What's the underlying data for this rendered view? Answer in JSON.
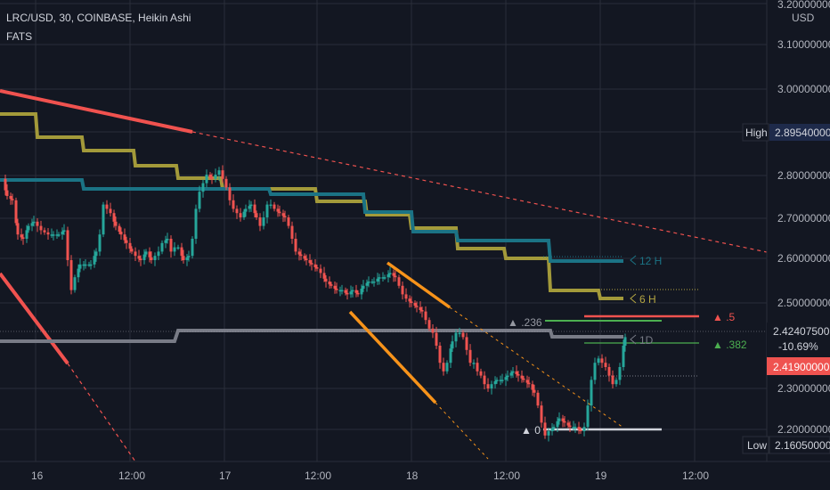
{
  "header": {
    "symbol_line": "LRC/USD, 30, COINBASE, Heikin Ashi",
    "indicator": "FATS"
  },
  "price_axis": {
    "currency": "USD",
    "labels": [
      "3.20000000",
      "3.10000000",
      "3.00000000",
      "2.80000000",
      "2.70000000",
      "2.60000000",
      "2.50000000",
      "2.30000000",
      "2.20000000"
    ],
    "high_label": "High",
    "high_value": "2.89540000",
    "low_label": "Low",
    "low_value": "2.16050000",
    "last_price": "2.42407500",
    "last_change": "-10.69%",
    "ref_price": "2.41900000"
  },
  "time_axis": {
    "labels": [
      "16",
      "12:00",
      "17",
      "12:00",
      "18",
      "12:00",
      "19",
      "12:00"
    ]
  },
  "annotations": {
    "h12": "12 H",
    "h6": "6 H",
    "d1": "1D",
    "fib_236": "▲ .236",
    "fib_5": "▲ .5",
    "fib_382": "▲ .382",
    "fib_0": "▲ 0"
  },
  "colors": {
    "background": "#131722",
    "up": "#26a69a",
    "down": "#ef5350",
    "olive": "#b5a642",
    "teal": "#1e7c8c",
    "gray": "#7b7f8a",
    "orange": "#f7931a",
    "high_badge": "#1e2a4a",
    "ref_badge": "#ef5350",
    "last_badge": "#26a69a"
  },
  "chart_data": {
    "type": "candlestick",
    "symbol": "LRC/USD",
    "interval": "30",
    "exchange": "COINBASE",
    "style": "Heikin Ashi",
    "ylim": [
      2.14,
      3.22
    ],
    "session_high": 2.8954,
    "session_low": 2.1605,
    "last": 2.424075,
    "change_pct": -10.69,
    "price_path": [
      [
        0,
        2.79
      ],
      [
        6,
        2.75
      ],
      [
        12,
        2.74
      ],
      [
        18,
        2.66
      ],
      [
        24,
        2.65
      ],
      [
        30,
        2.68
      ],
      [
        36,
        2.69
      ],
      [
        44,
        2.67
      ],
      [
        52,
        2.66
      ],
      [
        58,
        2.66
      ],
      [
        64,
        2.66
      ],
      [
        70,
        2.67
      ],
      [
        74,
        2.6
      ],
      [
        78,
        2.53
      ],
      [
        82,
        2.56
      ],
      [
        88,
        2.59
      ],
      [
        94,
        2.59
      ],
      [
        100,
        2.59
      ],
      [
        106,
        2.62
      ],
      [
        110,
        2.66
      ],
      [
        114,
        2.73
      ],
      [
        118,
        2.72
      ],
      [
        122,
        2.71
      ],
      [
        128,
        2.68
      ],
      [
        134,
        2.66
      ],
      [
        140,
        2.64
      ],
      [
        146,
        2.62
      ],
      [
        150,
        2.61
      ],
      [
        156,
        2.6
      ],
      [
        162,
        2.62
      ],
      [
        168,
        2.6
      ],
      [
        172,
        2.61
      ],
      [
        176,
        2.62
      ],
      [
        180,
        2.64
      ],
      [
        186,
        2.65
      ],
      [
        190,
        2.62
      ],
      [
        194,
        2.63
      ],
      [
        198,
        2.63
      ],
      [
        204,
        2.6
      ],
      [
        210,
        2.61
      ],
      [
        214,
        2.65
      ],
      [
        218,
        2.72
      ],
      [
        222,
        2.76
      ],
      [
        226,
        2.78
      ],
      [
        230,
        2.8
      ],
      [
        236,
        2.79
      ],
      [
        240,
        2.8
      ],
      [
        244,
        2.81
      ],
      [
        248,
        2.79
      ],
      [
        252,
        2.77
      ],
      [
        256,
        2.74
      ],
      [
        260,
        2.72
      ],
      [
        264,
        2.71
      ],
      [
        268,
        2.7
      ],
      [
        274,
        2.72
      ],
      [
        280,
        2.73
      ],
      [
        286,
        2.7
      ],
      [
        290,
        2.68
      ],
      [
        294,
        2.7
      ],
      [
        298,
        2.73
      ],
      [
        302,
        2.73
      ],
      [
        306,
        2.72
      ],
      [
        312,
        2.71
      ],
      [
        318,
        2.7
      ],
      [
        322,
        2.68
      ],
      [
        326,
        2.65
      ],
      [
        330,
        2.62
      ],
      [
        336,
        2.61
      ],
      [
        342,
        2.6
      ],
      [
        348,
        2.59
      ],
      [
        354,
        2.58
      ],
      [
        358,
        2.57
      ],
      [
        364,
        2.55
      ],
      [
        370,
        2.54
      ],
      [
        376,
        2.53
      ],
      [
        382,
        2.53
      ],
      [
        388,
        2.52
      ],
      [
        394,
        2.53
      ],
      [
        400,
        2.52
      ],
      [
        406,
        2.54
      ],
      [
        412,
        2.55
      ],
      [
        418,
        2.55
      ],
      [
        424,
        2.56
      ],
      [
        430,
        2.56
      ],
      [
        436,
        2.57
      ],
      [
        442,
        2.56
      ],
      [
        446,
        2.54
      ],
      [
        450,
        2.52
      ],
      [
        454,
        2.51
      ],
      [
        460,
        2.5
      ],
      [
        466,
        2.49
      ],
      [
        472,
        2.48
      ],
      [
        476,
        2.46
      ],
      [
        480,
        2.44
      ],
      [
        484,
        2.43
      ],
      [
        488,
        2.4
      ],
      [
        492,
        2.36
      ],
      [
        496,
        2.34
      ],
      [
        500,
        2.36
      ],
      [
        506,
        2.41
      ],
      [
        510,
        2.43
      ],
      [
        514,
        2.43
      ],
      [
        518,
        2.42
      ],
      [
        522,
        2.39
      ],
      [
        526,
        2.36
      ],
      [
        530,
        2.36
      ],
      [
        534,
        2.34
      ],
      [
        538,
        2.33
      ],
      [
        542,
        2.31
      ],
      [
        546,
        2.3
      ],
      [
        550,
        2.31
      ],
      [
        556,
        2.32
      ],
      [
        562,
        2.32
      ],
      [
        568,
        2.33
      ],
      [
        574,
        2.34
      ],
      [
        580,
        2.33
      ],
      [
        586,
        2.32
      ],
      [
        592,
        2.31
      ],
      [
        598,
        2.29
      ],
      [
        602,
        2.26
      ],
      [
        606,
        2.22
      ],
      [
        610,
        2.19
      ],
      [
        614,
        2.2
      ],
      [
        620,
        2.21
      ],
      [
        626,
        2.23
      ],
      [
        632,
        2.22
      ],
      [
        638,
        2.21
      ],
      [
        644,
        2.21
      ],
      [
        650,
        2.2
      ],
      [
        654,
        2.21
      ],
      [
        658,
        2.26
      ],
      [
        662,
        2.32
      ],
      [
        666,
        2.36
      ],
      [
        670,
        2.37
      ],
      [
        674,
        2.36
      ],
      [
        678,
        2.35
      ],
      [
        682,
        2.33
      ],
      [
        686,
        2.31
      ],
      [
        690,
        2.32
      ],
      [
        694,
        2.35
      ],
      [
        698,
        2.4
      ],
      [
        702,
        2.42
      ]
    ]
  }
}
